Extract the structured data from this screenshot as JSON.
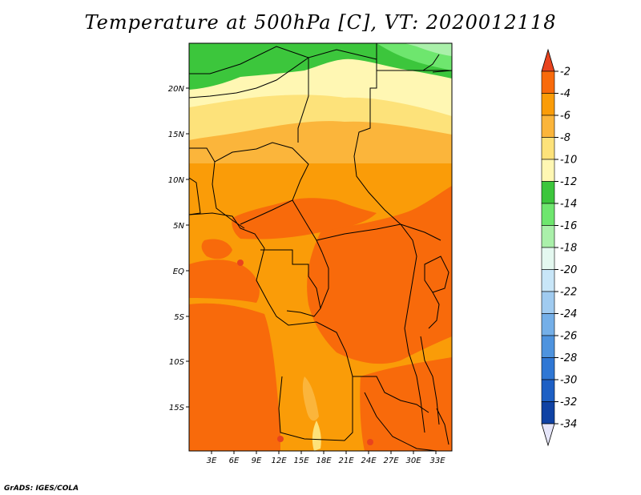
{
  "title": "Temperature at 500hPa [C], VT: 2020012118",
  "footer": "GrADS: IGES/COLA",
  "map": {
    "lat_labels": [
      "20N",
      "15N",
      "10N",
      "5N",
      "EQ",
      "5S",
      "10S",
      "15S"
    ],
    "lon_labels": [
      "3E",
      "6E",
      "9E",
      "12E",
      "15E",
      "18E",
      "21E",
      "24E",
      "27E",
      "30E",
      "33E"
    ]
  },
  "colorbar": {
    "labels": [
      "-2",
      "-4",
      "-6",
      "-8",
      "-10",
      "-12",
      "-14",
      "-16",
      "-18",
      "-20",
      "-22",
      "-24",
      "-26",
      "-28",
      "-30",
      "-32",
      "-34"
    ],
    "colors": {
      "c_above_-2": "#e8431e",
      "c_-2_-4": "#f86a0b",
      "c_-4_-6": "#fa9c08",
      "c_-6_-8": "#fbb53b",
      "c_-8_-10": "#fde27a",
      "c_-10_-12": "#fff7b3",
      "c_-12_-14": "#3cc63c",
      "c_-14_-16": "#6ee66e",
      "c_-16_-18": "#aaf0aa",
      "c_-18_-20": "#e4f8f0",
      "c_-20_-22": "#c8e6f8",
      "c_-22_-24": "#a0cbf0",
      "c_-24_-26": "#74afe8",
      "c_-26_-28": "#4e93de",
      "c_-28_-30": "#2f77d4",
      "c_-30_-32": "#1d5fc4",
      "c_-32_-34": "#0f42a4",
      "c_below_-34": "#0a0a6e",
      "c_open_end": "#e6e6fa"
    }
  }
}
